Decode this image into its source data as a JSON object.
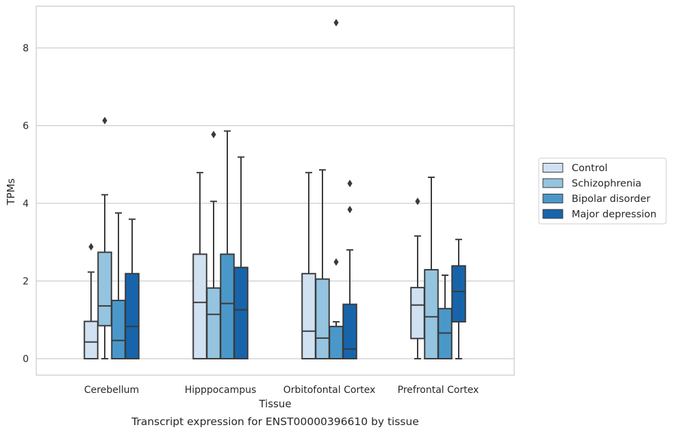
{
  "caption": "Transcript expression for ENST00000396610 by tissue",
  "chart_data": {
    "type": "box",
    "xlabel": "Tissue",
    "ylabel": "TPMs",
    "ylim": [
      -0.42,
      9.1
    ],
    "yticks": [
      0,
      2,
      4,
      6,
      8
    ],
    "grid": "horizontal",
    "legend_position": "right",
    "categories": [
      "Cerebellum",
      "Hipppocampus",
      "Orbitofontal Cortex",
      "Prefrontal Cortex"
    ],
    "series": [
      {
        "name": "Control",
        "color": "#d0e1f2",
        "boxes": [
          {
            "whisker_low": 0,
            "q1": 0,
            "median": 0.43,
            "q3": 0.96,
            "whisker_high": 2.23,
            "outliers": [
              2.88
            ]
          },
          {
            "whisker_low": 0,
            "q1": 0,
            "median": 1.45,
            "q3": 2.69,
            "whisker_high": 4.79,
            "outliers": []
          },
          {
            "whisker_low": 0,
            "q1": 0,
            "median": 0.71,
            "q3": 2.19,
            "whisker_high": 4.79,
            "outliers": []
          },
          {
            "whisker_low": 0,
            "q1": 0.52,
            "median": 1.38,
            "q3": 1.83,
            "whisker_high": 3.16,
            "outliers": [
              4.05
            ]
          }
        ]
      },
      {
        "name": "Schizophrenia",
        "color": "#94c4df",
        "boxes": [
          {
            "whisker_low": 0,
            "q1": 0.85,
            "median": 1.36,
            "q3": 2.74,
            "whisker_high": 4.22,
            "outliers": [
              6.13
            ]
          },
          {
            "whisker_low": 0,
            "q1": 0,
            "median": 1.14,
            "q3": 1.82,
            "whisker_high": 4.05,
            "outliers": [
              5.77
            ]
          },
          {
            "whisker_low": 0,
            "q1": 0,
            "median": 0.53,
            "q3": 2.05,
            "whisker_high": 4.86,
            "outliers": []
          },
          {
            "whisker_low": 0,
            "q1": 0,
            "median": 1.08,
            "q3": 2.29,
            "whisker_high": 4.67,
            "outliers": []
          }
        ]
      },
      {
        "name": "Bipolar disorder",
        "color": "#4a98c9",
        "boxes": [
          {
            "whisker_low": 0,
            "q1": 0,
            "median": 0.47,
            "q3": 1.5,
            "whisker_high": 3.75,
            "outliers": []
          },
          {
            "whisker_low": 0,
            "q1": 0,
            "median": 1.42,
            "q3": 2.69,
            "whisker_high": 5.86,
            "outliers": []
          },
          {
            "whisker_low": 0,
            "q1": 0,
            "median": 0,
            "q3": 0.83,
            "whisker_high": 0.95,
            "outliers": [
              2.49,
              8.65
            ]
          },
          {
            "whisker_low": 0,
            "q1": 0,
            "median": 0.66,
            "q3": 1.29,
            "whisker_high": 2.15,
            "outliers": []
          }
        ]
      },
      {
        "name": "Major depression",
        "color": "#1764ab",
        "boxes": [
          {
            "whisker_low": 0,
            "q1": 0,
            "median": 0.83,
            "q3": 2.19,
            "whisker_high": 3.59,
            "outliers": []
          },
          {
            "whisker_low": 0,
            "q1": 0,
            "median": 1.26,
            "q3": 2.35,
            "whisker_high": 5.19,
            "outliers": []
          },
          {
            "whisker_low": 0,
            "q1": 0,
            "median": 0.25,
            "q3": 1.4,
            "whisker_high": 2.8,
            "outliers": [
              3.84,
              4.51
            ]
          },
          {
            "whisker_low": 0,
            "q1": 0.95,
            "median": 1.73,
            "q3": 2.39,
            "whisker_high": 3.07,
            "outliers": []
          }
        ]
      }
    ]
  }
}
